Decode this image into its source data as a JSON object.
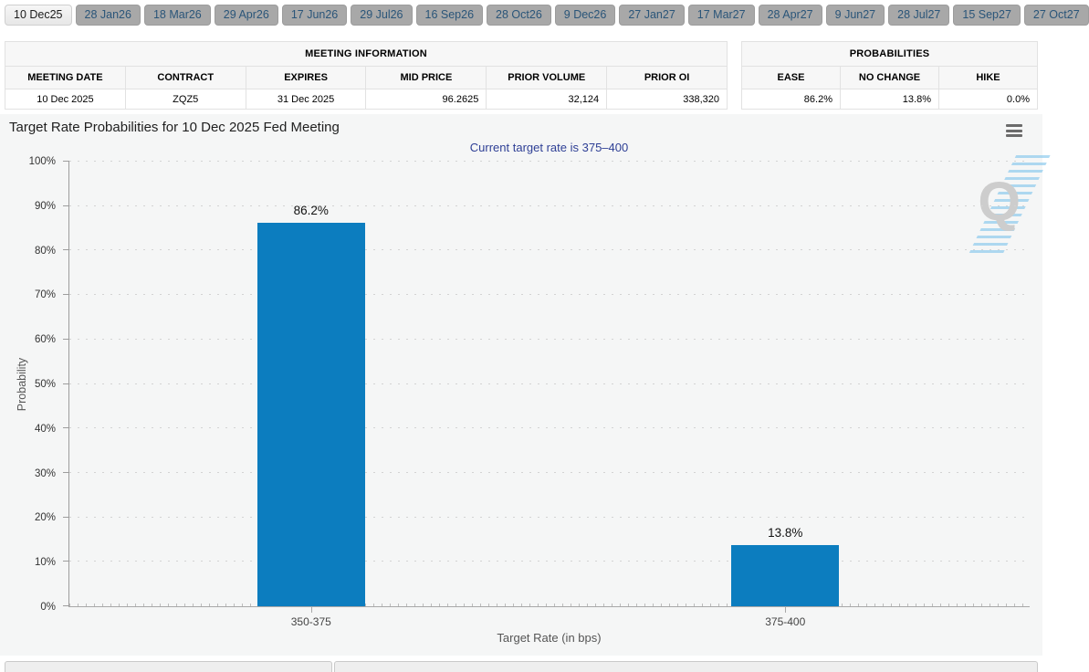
{
  "tabs": [
    {
      "label": "10 Dec25",
      "active": true
    },
    {
      "label": "28 Jan26",
      "active": false
    },
    {
      "label": "18 Mar26",
      "active": false
    },
    {
      "label": "29 Apr26",
      "active": false
    },
    {
      "label": "17 Jun26",
      "active": false
    },
    {
      "label": "29 Jul26",
      "active": false
    },
    {
      "label": "16 Sep26",
      "active": false
    },
    {
      "label": "28 Oct26",
      "active": false
    },
    {
      "label": "9 Dec26",
      "active": false
    },
    {
      "label": "27 Jan27",
      "active": false
    },
    {
      "label": "17 Mar27",
      "active": false
    },
    {
      "label": "28 Apr27",
      "active": false
    },
    {
      "label": "9 Jun27",
      "active": false
    },
    {
      "label": "28 Jul27",
      "active": false
    },
    {
      "label": "15 Sep27",
      "active": false
    },
    {
      "label": "27 Oct27",
      "active": false
    }
  ],
  "meeting_info": {
    "title": "MEETING INFORMATION",
    "columns": [
      "MEETING DATE",
      "CONTRACT",
      "EXPIRES",
      "MID PRICE",
      "PRIOR VOLUME",
      "PRIOR OI"
    ],
    "row": [
      "10 Dec 2025",
      "ZQZ5",
      "31 Dec 2025",
      "96.2625",
      "32,124",
      "338,320"
    ]
  },
  "probabilities": {
    "title": "PROBABILITIES",
    "columns": [
      "EASE",
      "NO CHANGE",
      "HIKE"
    ],
    "row": [
      "86.2%",
      "13.8%",
      "0.0%"
    ]
  },
  "chart": {
    "title": "Target Rate Probabilities for 10 Dec 2025 Fed Meeting",
    "subtitle": "Current target rate is 375–400",
    "watermark_letter": "Q"
  },
  "chart_data": {
    "type": "bar",
    "categories": [
      "350-375",
      "375-400"
    ],
    "values": [
      86.2,
      13.8
    ],
    "value_labels": [
      "86.2%",
      "13.8%"
    ],
    "title": "Target Rate Probabilities for 10 Dec 2025 Fed Meeting",
    "subtitle": "Current target rate is 375–400",
    "xlabel": "Target Rate (in bps)",
    "ylabel": "Probability",
    "ylim": [
      0,
      100
    ],
    "ytick_step": 10,
    "ytick_suffix": "%",
    "grid": "dotted-horizontal",
    "legend": "none",
    "bar_color": "#0c7dbf"
  },
  "colors": {
    "bar": "#0c7dbf",
    "subtitle_text": "#2e3f95",
    "tab_inactive_bg": "#a8a8a8",
    "tab_inactive_text": "#2a5579",
    "tab_active_bg": "#ececec",
    "chart_background": "#f5f6f6",
    "watermark_stripes": "#7dc3eb"
  }
}
